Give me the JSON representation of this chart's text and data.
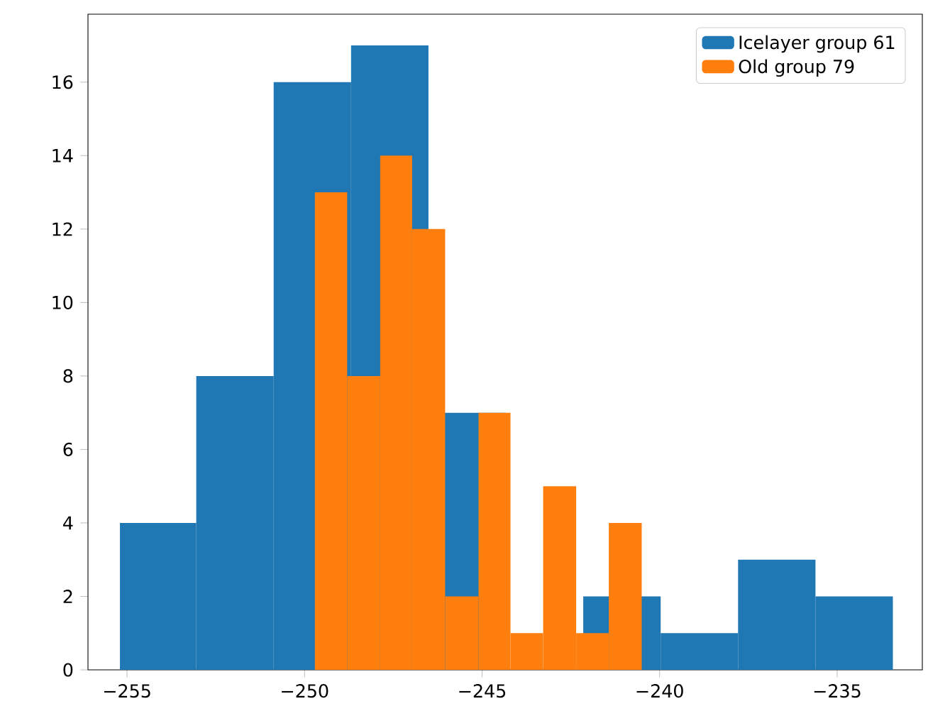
{
  "chart_data": {
    "type": "histogram",
    "bins": [
      -255.2,
      -253.05,
      -250.87,
      -248.69,
      -246.51,
      -244.33,
      -242.15,
      -239.97,
      -237.79,
      -235.61,
      -233.43
    ],
    "series": [
      {
        "name": "Icelayer group 61",
        "color": "#1f77b4",
        "values": [
          4,
          8,
          16,
          17,
          7,
          null,
          2,
          1,
          3,
          2
        ]
      },
      {
        "name": "Old group 79",
        "color": "#ff7f0e",
        "bins": [
          -249.71,
          -248.8,
          -247.87,
          -246.97,
          -246.04,
          -245.1,
          -244.2,
          -243.28,
          -242.35,
          -241.43,
          -240.5
        ],
        "values": [
          13,
          8,
          14,
          12,
          2,
          7,
          1,
          5,
          1,
          4
        ]
      }
    ],
    "xlim": [
      -256.1,
      -232.6
    ],
    "ylim": [
      0,
      17.85
    ],
    "xticks": [
      {
        "value": -255,
        "label": "−255"
      },
      {
        "value": -250,
        "label": "−250"
      },
      {
        "value": -245,
        "label": "−245"
      },
      {
        "value": -240,
        "label": "−240"
      },
      {
        "value": -235,
        "label": "−235"
      }
    ],
    "yticks": [
      0,
      2,
      4,
      6,
      8,
      10,
      12,
      14,
      16
    ],
    "legend": "top right"
  }
}
